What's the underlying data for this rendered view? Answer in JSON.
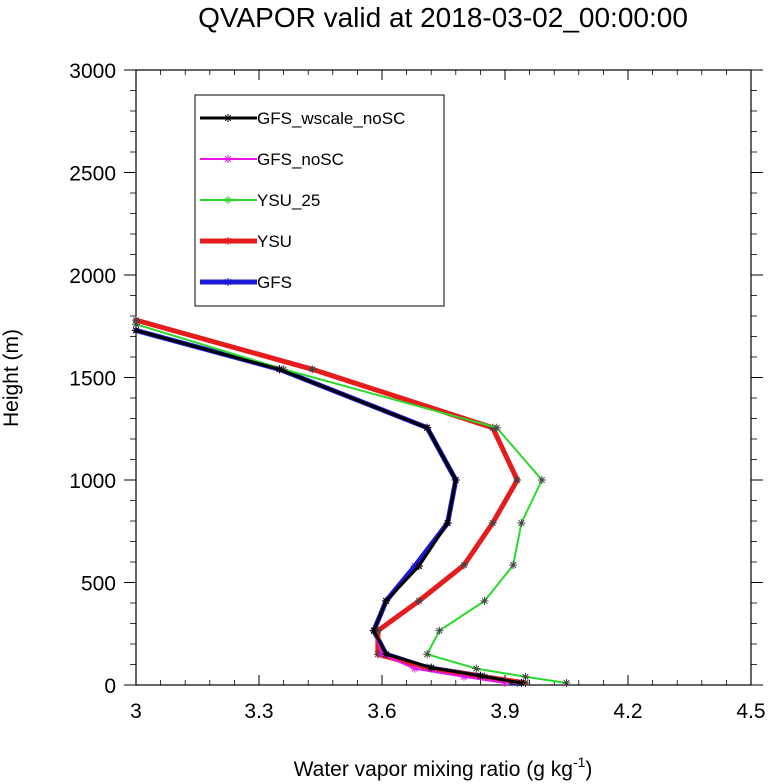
{
  "chart_data": {
    "type": "line",
    "title": "QVAPOR valid at 2018-03-02_00:00:00",
    "xlabel": "Water vapor mixing ratio (g kg",
    "xlabel_superscript": "-1",
    "xlabel_suffix": ")",
    "ylabel": "Height (m)",
    "xlim": [
      3.0,
      4.5
    ],
    "ylim": [
      0,
      3000
    ],
    "xticks": [
      "3",
      "3.3",
      "3.6",
      "3.9",
      "4.2",
      "4.5"
    ],
    "xtick_values": [
      3.0,
      3.3,
      3.6,
      3.9,
      4.2,
      4.5
    ],
    "yticks": [
      "0",
      "500",
      "1000",
      "1500",
      "2000",
      "2500",
      "3000"
    ],
    "ytick_values": [
      0,
      500,
      1000,
      1500,
      2000,
      2500,
      3000
    ],
    "grid": false,
    "legend_position": "top-left",
    "series": [
      {
        "name": "GFS",
        "color": "#1a1ad6",
        "points": [
          [
            3.93,
            10
          ],
          [
            3.84,
            45
          ],
          [
            3.71,
            85
          ],
          [
            3.61,
            150
          ],
          [
            3.58,
            265
          ],
          [
            3.61,
            410
          ],
          [
            3.68,
            580
          ],
          [
            3.76,
            790
          ],
          [
            3.78,
            1000
          ],
          [
            3.71,
            1255
          ],
          [
            3.35,
            1540
          ],
          [
            3.0,
            1730
          ]
        ]
      },
      {
        "name": "YSU",
        "color": "#e61c1c",
        "points": [
          [
            3.95,
            10
          ],
          [
            3.85,
            40
          ],
          [
            3.72,
            80
          ],
          [
            3.59,
            150
          ],
          [
            3.59,
            265
          ],
          [
            3.69,
            410
          ],
          [
            3.8,
            585
          ],
          [
            3.87,
            790
          ],
          [
            3.93,
            1000
          ],
          [
            3.87,
            1255
          ],
          [
            3.43,
            1540
          ],
          [
            3.0,
            1780
          ]
        ]
      },
      {
        "name": "YSU_25",
        "color": "#2bd92b",
        "points": [
          [
            4.05,
            10
          ],
          [
            3.95,
            40
          ],
          [
            3.83,
            80
          ],
          [
            3.71,
            150
          ],
          [
            3.74,
            265
          ],
          [
            3.85,
            410
          ],
          [
            3.92,
            585
          ],
          [
            3.94,
            790
          ],
          [
            3.99,
            1000
          ],
          [
            3.88,
            1255
          ],
          [
            3.36,
            1540
          ],
          [
            3.0,
            1760
          ]
        ]
      },
      {
        "name": "GFS_noSC",
        "color": "#e616e6",
        "points": [
          [
            3.9,
            10
          ],
          [
            3.8,
            40
          ],
          [
            3.68,
            80
          ],
          [
            3.6,
            150
          ],
          [
            3.58,
            265
          ],
          [
            3.61,
            410
          ],
          [
            3.69,
            580
          ],
          [
            3.76,
            790
          ],
          [
            3.78,
            1000
          ],
          [
            3.71,
            1255
          ],
          [
            3.35,
            1540
          ],
          [
            3.0,
            1730
          ]
        ]
      },
      {
        "name": "GFS_wscale_noSC",
        "color": "#000000",
        "points": [
          [
            3.94,
            10
          ],
          [
            3.84,
            45
          ],
          [
            3.72,
            85
          ],
          [
            3.61,
            150
          ],
          [
            3.58,
            265
          ],
          [
            3.61,
            410
          ],
          [
            3.69,
            580
          ],
          [
            3.76,
            790
          ],
          [
            3.78,
            1000
          ],
          [
            3.71,
            1255
          ],
          [
            3.35,
            1540
          ],
          [
            3.0,
            1730
          ]
        ]
      }
    ],
    "legend": [
      {
        "name": "GFS_wscale_noSC",
        "color": "#000000",
        "width": 3
      },
      {
        "name": "GFS_noSC",
        "color": "#e616e6",
        "width": 2
      },
      {
        "name": "YSU_25",
        "color": "#2bd92b",
        "width": 2
      },
      {
        "name": "YSU",
        "color": "#e61c1c",
        "width": 5
      },
      {
        "name": "GFS",
        "color": "#1a1ad6",
        "width": 5
      }
    ]
  }
}
